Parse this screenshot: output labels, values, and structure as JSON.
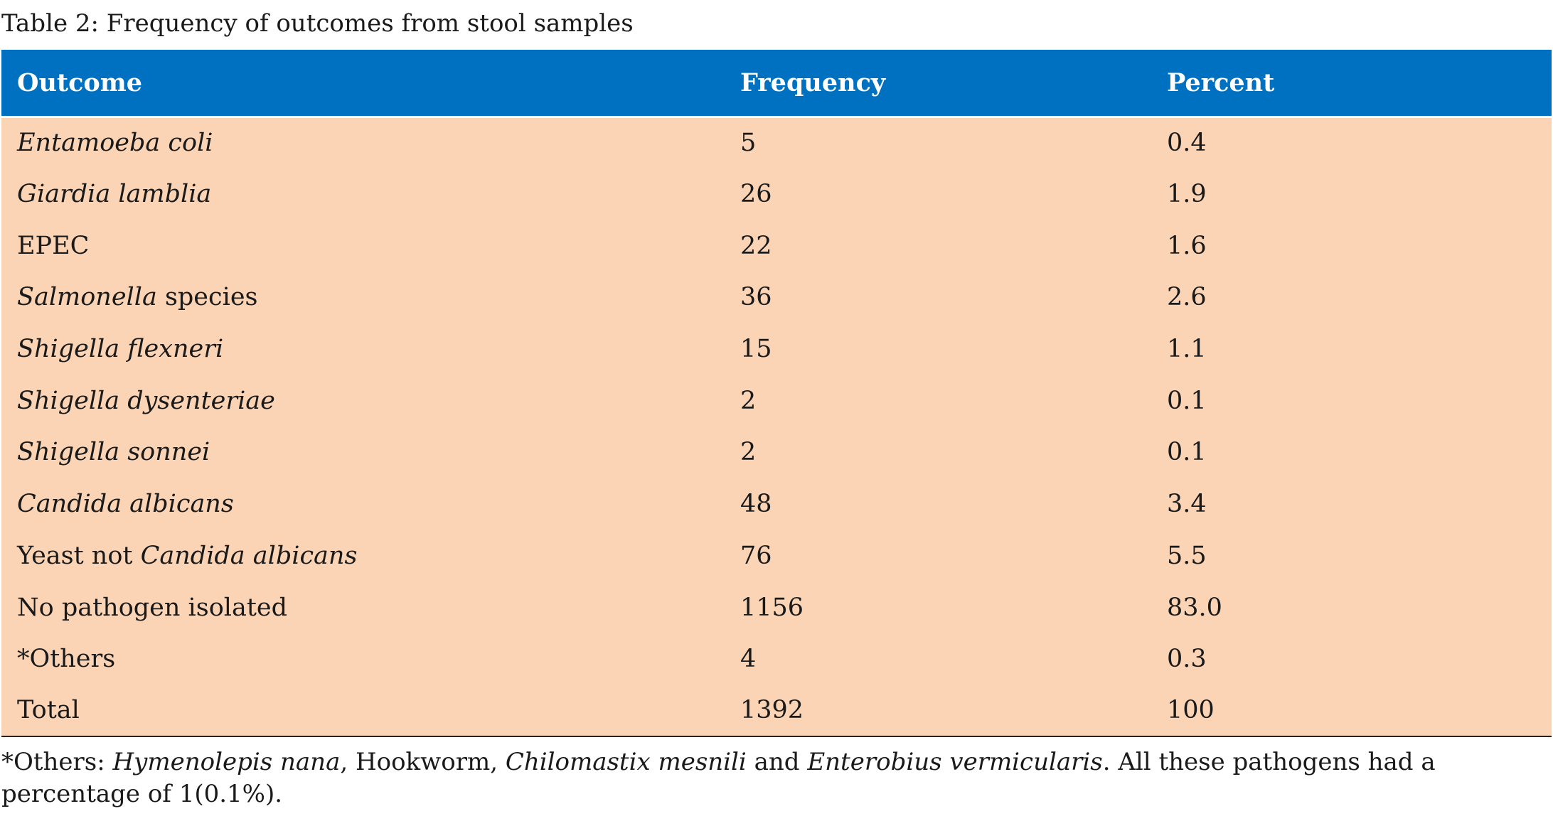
{
  "caption": "Table 2: Frequency of outcomes from stool samples",
  "table": {
    "headers": [
      "Outcome",
      "Frequency",
      "Percent"
    ],
    "rows": [
      {
        "outcome_prefix": "",
        "outcome_italic": "Entamoeba coli",
        "outcome_suffix": "",
        "frequency": "5",
        "percent": "0.4"
      },
      {
        "outcome_prefix": "",
        "outcome_italic": "Giardia lamblia",
        "outcome_suffix": "",
        "frequency": "26",
        "percent": "1.9"
      },
      {
        "outcome_prefix": "EPEC",
        "outcome_italic": "",
        "outcome_suffix": "",
        "frequency": "22",
        "percent": "1.6"
      },
      {
        "outcome_prefix": "",
        "outcome_italic": "Salmonella",
        "outcome_suffix": " species",
        "frequency": "36",
        "percent": "2.6"
      },
      {
        "outcome_prefix": "",
        "outcome_italic": "Shigella flexneri",
        "outcome_suffix": "",
        "frequency": "15",
        "percent": "1.1"
      },
      {
        "outcome_prefix": "",
        "outcome_italic": "Shigella dysenteriae",
        "outcome_suffix": "",
        "frequency": "2",
        "percent": "0.1"
      },
      {
        "outcome_prefix": "",
        "outcome_italic": "Shigella sonnei",
        "outcome_suffix": "",
        "frequency": "2",
        "percent": "0.1"
      },
      {
        "outcome_prefix": "",
        "outcome_italic": "Candida albicans",
        "outcome_suffix": "",
        "frequency": "48",
        "percent": "3.4"
      },
      {
        "outcome_prefix": "Yeast not ",
        "outcome_italic": "Candida albicans",
        "outcome_suffix": "",
        "frequency": "76",
        "percent": "5.5"
      },
      {
        "outcome_prefix": "No pathogen isolated",
        "outcome_italic": "",
        "outcome_suffix": "",
        "frequency": "1156",
        "percent": "83.0"
      },
      {
        "outcome_prefix": "*Others",
        "outcome_italic": "",
        "outcome_suffix": "",
        "frequency": "4",
        "percent": "0.3"
      },
      {
        "outcome_prefix": "Total",
        "outcome_italic": "",
        "outcome_suffix": "",
        "frequency": "1392",
        "percent": "100"
      }
    ]
  },
  "footnote": {
    "parts": [
      {
        "text": "*Others: ",
        "italic": false
      },
      {
        "text": "Hymenolepis nana",
        "italic": true
      },
      {
        "text": ", Hookworm, ",
        "italic": false
      },
      {
        "text": "Chilomastix mesnili",
        "italic": true
      },
      {
        "text": " and ",
        "italic": false
      },
      {
        "text": "Enterobius vermicularis",
        "italic": true
      },
      {
        "text": ". All these pathogens had a percentage of 1(0.1%).",
        "italic": false
      }
    ]
  },
  "colors": {
    "header_bg": "#0070c0",
    "header_text": "#ffffff",
    "body_bg": "#fad4b5"
  }
}
